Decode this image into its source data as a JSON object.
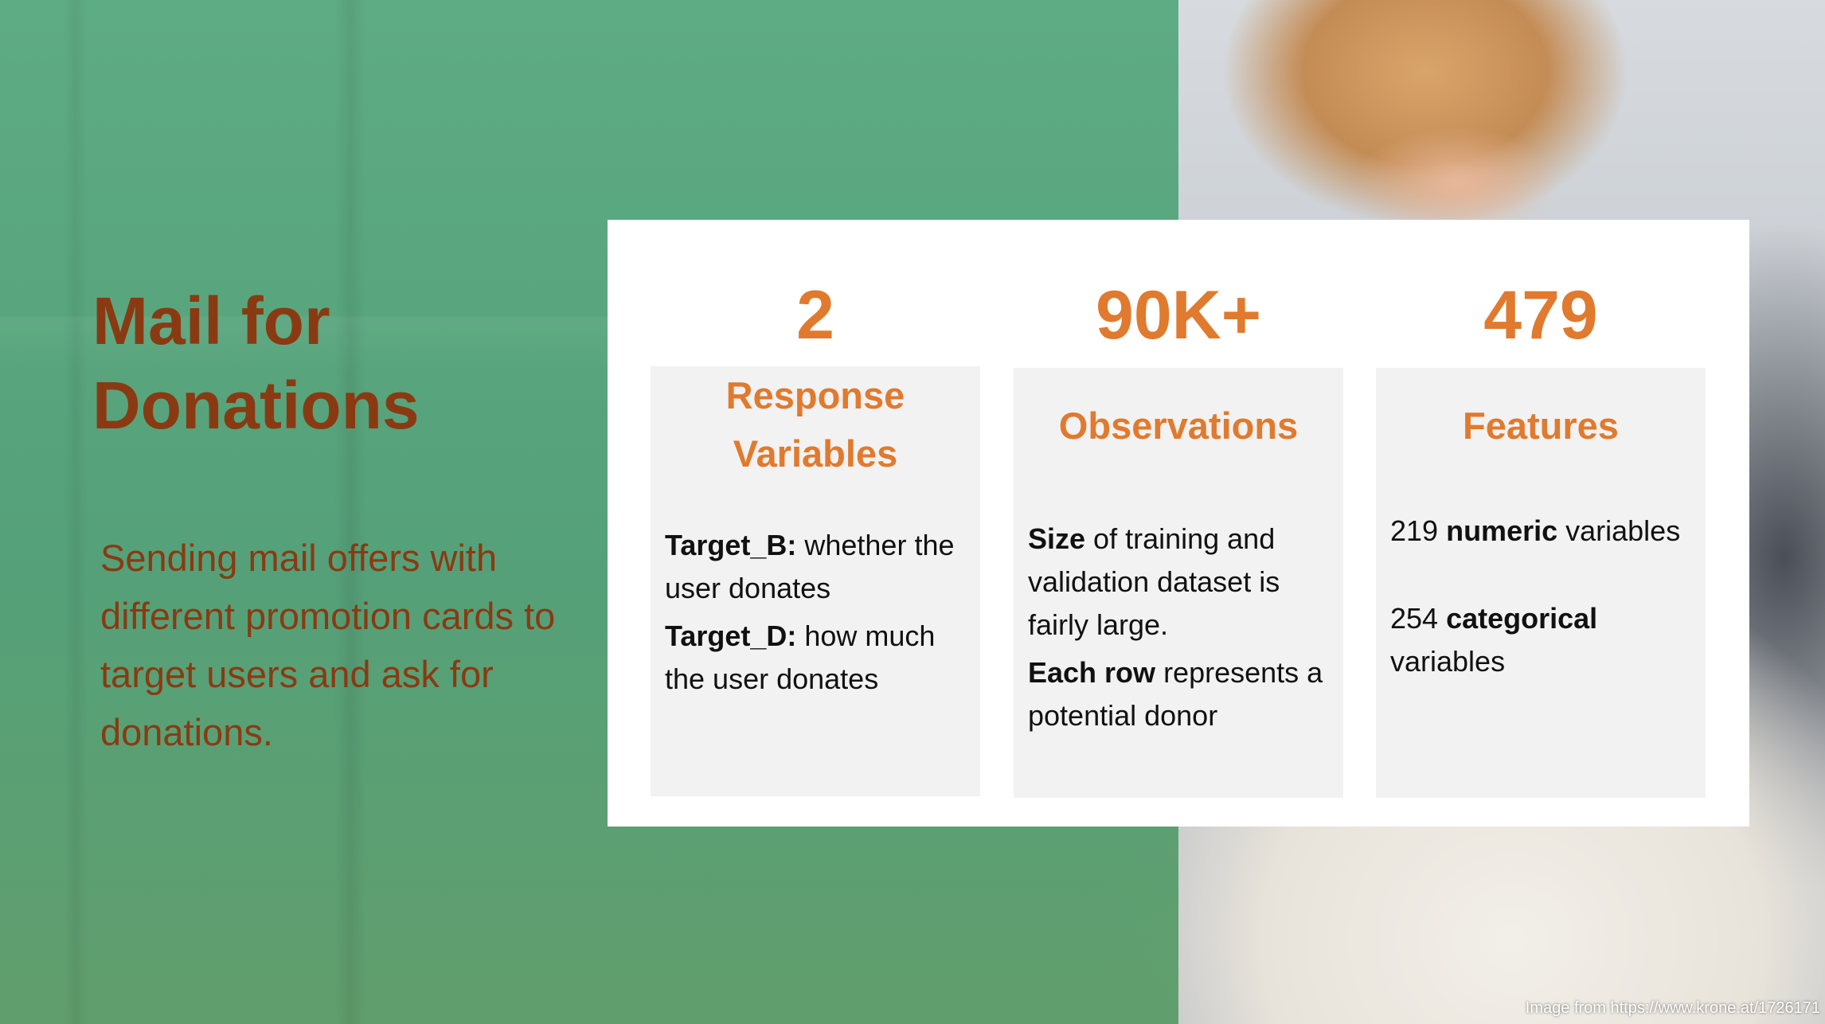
{
  "slide": {
    "title_line1": "Mail for",
    "title_line2": "Donations",
    "description": "Sending mail offers with different promotion cards to target users and ask for donations.",
    "accent_color": "#e07a2e",
    "title_color": "#8a3a12",
    "overlay_color": "#4f9e78"
  },
  "stats": [
    {
      "number": "2",
      "heading_line1": "Response",
      "heading_line2": "Variables",
      "item1_bold": "Target_B:",
      "item1_text": " whether the user donates",
      "item2_bold": "Target_D:",
      "item2_text": " how much the user donates"
    },
    {
      "number": "90K+",
      "heading_line1": "Observations",
      "item1_bold": "Size",
      "item1_text": " of training and validation dataset is fairly large.",
      "item2_bold": "Each row",
      "item2_text": " represents a potential donor"
    },
    {
      "number": "479",
      "heading_line1": "Features",
      "item1_pre": "219 ",
      "item1_bold": "numeric",
      "item1_text": " variables",
      "item2_pre": "254 ",
      "item2_bold": "categorical",
      "item2_text": " variables"
    }
  ],
  "credit": "Image from https://www.krone.at/1726171"
}
